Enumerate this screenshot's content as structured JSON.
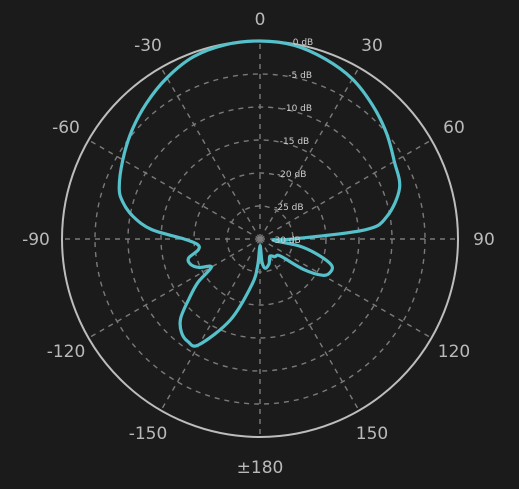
{
  "chart_data": {
    "type": "polar-line",
    "angle_unit": "degrees",
    "radial_unit": "dB",
    "radial_range": [
      -30,
      0
    ],
    "radial_ticks": [
      0,
      -5,
      -10,
      -15,
      -20,
      -25,
      -30
    ],
    "radial_tick_labels": [
      "0 dB",
      "-5 dB",
      "-10 dB",
      "-15 dB",
      "-20 dB",
      "-25 dB",
      "-30 dB"
    ],
    "angle_ticks": [
      0,
      30,
      60,
      90,
      120,
      150,
      180,
      -150,
      -120,
      -90,
      -60,
      -30
    ],
    "angle_tick_labels": [
      "0",
      "30",
      "60",
      "90",
      "120",
      "150",
      "±180",
      "-150",
      "-120",
      "-90",
      "-60",
      "-30"
    ],
    "grid": true,
    "colors": {
      "background": "#1b1b1b",
      "outer_circle": "#bdbdbd",
      "grid": "#7a7a7a",
      "series": "#56c1ca"
    },
    "series": [
      {
        "theta": [
          0,
          10,
          20,
          30,
          40,
          50,
          60,
          70,
          80,
          85,
          90,
          95,
          100,
          105,
          110,
          115,
          120,
          125,
          130,
          140,
          150,
          160,
          170,
          175,
          180,
          -175,
          -170,
          -160,
          -150,
          -145,
          -140,
          -135,
          -130,
          -125,
          -120,
          -115,
          -110,
          -105,
          -100,
          -95,
          -90,
          -85,
          -80,
          -75,
          -70,
          -60,
          -50,
          -40,
          -30,
          -20,
          -10
        ],
        "r": [
          0,
          -0.2,
          -1.0,
          -2.0,
          -3.5,
          -5.0,
          -6.5,
          -7.5,
          -10.5,
          -14,
          -25,
          -28,
          -24,
          -21,
          -18.5,
          -18.2,
          -19,
          -22,
          -26,
          -26.5,
          -27,
          -26,
          -25.5,
          -26.5,
          -29,
          -26,
          -23,
          -17,
          -11.5,
          -11,
          -11.5,
          -13,
          -16,
          -18.5,
          -21.5,
          -19.8,
          -18.8,
          -18.8,
          -20.5,
          -20.5,
          -18.5,
          -13.5,
          -10.5,
          -8.5,
          -7.3,
          -6.0,
          -4.6,
          -3.2,
          -1.8,
          -0.6,
          -0.1
        ]
      }
    ]
  }
}
